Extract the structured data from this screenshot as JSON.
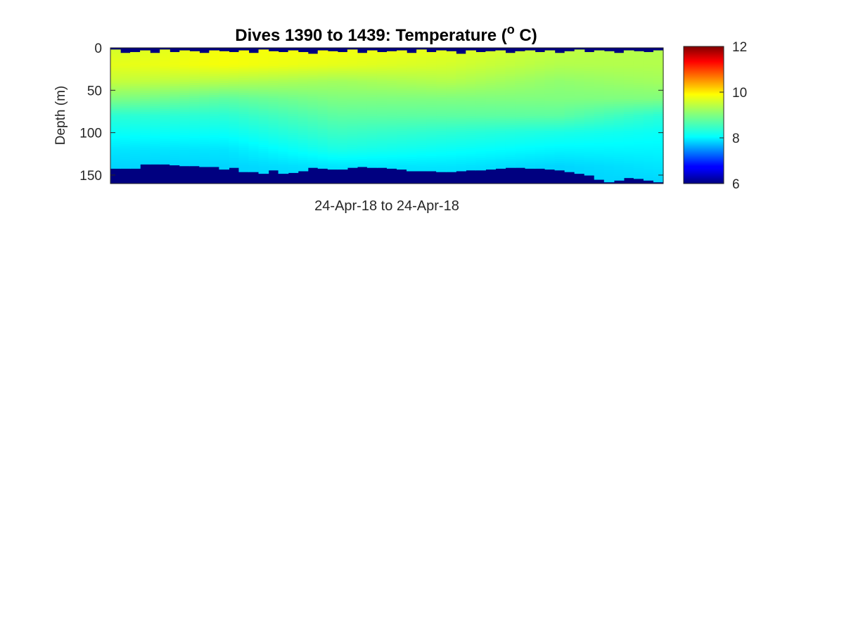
{
  "chart_data": {
    "type": "heatmap",
    "title": "Dives 1390 to 1439: Temperature (",
    "title_superscript": "o",
    "title_suffix": " C)",
    "xlabel": "24-Apr-18 to 24-Apr-18",
    "ylabel": "Depth (m)",
    "y_reversed": true,
    "ylim": [
      0,
      160
    ],
    "y_ticks": [
      0,
      50,
      100,
      150
    ],
    "y_tick_labels": [
      "0",
      "50",
      "100",
      "150"
    ],
    "x_ticks": [],
    "dives": {
      "first": 1390,
      "last": 1439
    },
    "colorbar": {
      "colormap": "jet",
      "clim": [
        6,
        12
      ],
      "ticks": [
        6,
        8,
        10,
        12
      ],
      "tick_labels": [
        "6",
        "8",
        "10",
        "12"
      ]
    },
    "bottom_depth_m": [
      142,
      142,
      142,
      137,
      137,
      137,
      138,
      139,
      139,
      140,
      140,
      143,
      141,
      146,
      146,
      148,
      144,
      148,
      147,
      145,
      141,
      142,
      143,
      143,
      141,
      140,
      141,
      141,
      142,
      143,
      145,
      145,
      145,
      146,
      146,
      145,
      144,
      144,
      143,
      142,
      141,
      141,
      142,
      142,
      143,
      144,
      146,
      148,
      150,
      155,
      158,
      156,
      153,
      154,
      156,
      158
    ],
    "surface_gap_m": [
      2,
      6,
      5,
      3,
      6,
      2,
      5,
      3,
      4,
      6,
      3,
      4,
      5,
      3,
      6,
      2,
      4,
      5,
      3,
      5,
      7,
      3,
      4,
      5,
      2,
      6,
      3,
      5,
      4,
      3,
      6,
      2,
      5,
      3,
      4,
      7,
      3,
      5,
      4,
      3,
      6,
      4,
      3,
      5,
      3,
      6,
      4,
      2,
      5,
      3,
      4,
      6,
      3,
      4,
      5,
      3
    ],
    "temperature_profile_depths_m": [
      0,
      20,
      40,
      60,
      80,
      100,
      120,
      140,
      160
    ],
    "temperature_profiles_c": {
      "note_columns": "representative profiles at dive positions",
      "dive_1390": [
        9.5,
        9.6,
        9.4,
        9.0,
        8.5,
        8.3,
        8.1,
        8.0,
        8.0
      ],
      "dive_1400": [
        9.7,
        9.7,
        9.3,
        8.8,
        8.5,
        8.3,
        8.1,
        8.0,
        8.0
      ],
      "dive_1410": [
        9.7,
        9.6,
        9.2,
        9.0,
        8.8,
        8.6,
        8.4,
        8.1,
        8.0
      ],
      "dive_1420": [
        9.6,
        9.5,
        9.3,
        9.0,
        8.8,
        8.5,
        8.3,
        8.1,
        8.0
      ],
      "dive_1430": [
        9.4,
        9.3,
        9.1,
        9.0,
        8.8,
        8.4,
        8.2,
        8.0,
        8.0
      ],
      "dive_1439": [
        9.3,
        9.3,
        9.2,
        9.0,
        8.5,
        8.3,
        8.2,
        8.1,
        8.0
      ]
    },
    "outside_data_value_c": 6.0
  }
}
